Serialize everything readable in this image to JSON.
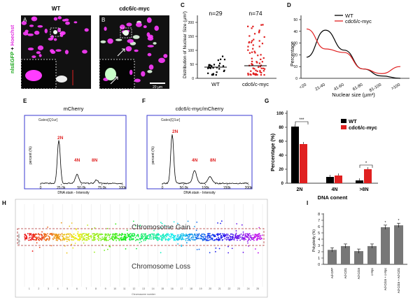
{
  "colors": {
    "wt": "#000000",
    "mut": "#e02020",
    "gfp": "#3cff3c",
    "hoechst": "#ff3cff",
    "gate": "#3a3ad0",
    "bar": "#777777"
  },
  "panels": {
    "A": {
      "letter": "A",
      "title": "WT"
    },
    "B": {
      "letter": "B",
      "title": "cdc6/c-myc",
      "scale": "20 µm"
    },
    "side_label": {
      "green": "nlsEGFP",
      "plus": "+",
      "magenta": "Hoechst"
    },
    "C": {
      "letter": "C",
      "n_wt": "n=29",
      "n_mut": "n=74",
      "ylabel": "Distribution of Nuclear Size (µm²)",
      "cats": [
        "WT",
        "cdc6/c-myc"
      ]
    },
    "D": {
      "letter": "D",
      "ylabel": "Percentage",
      "xlabel": "Nuclear size (µm²)",
      "legend": [
        "WT",
        "cdc6/c-myc"
      ]
    },
    "E": {
      "letter": "E",
      "title": "mCherry",
      "gate": "Gates[Q1ur]",
      "peaks": [
        "2N",
        "4N",
        "8N"
      ],
      "xlabel": "DNA stain - Intensity",
      "ylabel": "percent (%)"
    },
    "F": {
      "letter": "F",
      "title": "cdc6/c-myc/mCherry",
      "gate": "Gates[Q1ur]",
      "peaks": [
        "2N",
        "4N",
        "8N"
      ],
      "xlabel": "DNA stain - Intensity",
      "ylabel": "percent (%)"
    },
    "G": {
      "letter": "G",
      "ylabel": "Percentage (%)",
      "xlabel": "DNA conent",
      "legend": [
        "WT",
        "cdc6/c-myc"
      ]
    },
    "H": {
      "letter": "H",
      "gain": "Chromosome Gain",
      "loss": "Chromosome Loss",
      "xlabel": "Chromosome number",
      "ylabel": "Log2 ratio"
    },
    "I": {
      "letter": "I",
      "ylabel": "Polyploidy (%)"
    }
  },
  "chart_data": [
    {
      "panel": "C",
      "type": "scatter",
      "categories": [
        "WT",
        "cdc6/c-myc"
      ],
      "ylim": [
        0,
        200
      ],
      "yticks": [
        "0",
        "50",
        "100",
        "150",
        "200"
      ],
      "series": [
        {
          "name": "WT",
          "n": 29,
          "median": 40
        },
        {
          "name": "cdc6/c-myc",
          "n": 74,
          "median": 45
        }
      ]
    },
    {
      "panel": "D",
      "type": "line",
      "categories": [
        "<20",
        "21-40",
        "41-60",
        "61-80",
        "81-100",
        ">100"
      ],
      "ylim": [
        0,
        50
      ],
      "yticks": [
        "0",
        "10",
        "20",
        "30",
        "40",
        "50"
      ],
      "series": [
        {
          "name": "WT",
          "values": [
            18,
            41,
            24,
            8,
            2,
            0
          ]
        },
        {
          "name": "cdc6/c-myc",
          "values": [
            42,
            25,
            22,
            8,
            4,
            10
          ]
        }
      ]
    },
    {
      "panel": "G",
      "type": "bar",
      "categories": [
        "2N",
        "4N",
        ">8N"
      ],
      "ylim": [
        0,
        100
      ],
      "yticks": [
        "0",
        "20",
        "40",
        "60",
        "80",
        "100"
      ],
      "series": [
        {
          "name": "WT",
          "values": [
            81,
            9,
            4
          ]
        },
        {
          "name": "cdc6/c-myc",
          "values": [
            56,
            11,
            20
          ]
        }
      ],
      "annotations": [
        "***",
        "*"
      ]
    },
    {
      "panel": "I",
      "type": "bar",
      "categories": [
        "Ad-GFP",
        "Ad-Cdt1",
        "Ad-Cdc6",
        "c-Myc",
        "Ad-Cdc6 + c-Myc",
        "Ad-Cdc6 + Ad-Cdt1"
      ],
      "ylim": [
        0,
        8
      ],
      "yticks": [
        "0",
        "1",
        "2",
        "3",
        "4",
        "5",
        "6",
        "7",
        "8"
      ],
      "values": [
        2.3,
        2.9,
        2.1,
        2.9,
        5.9,
        6.2
      ]
    },
    {
      "panel": "E",
      "type": "area",
      "xticks": [
        "0",
        "25.0k",
        "50.0k",
        "75.0k",
        "100k"
      ],
      "peak_labels": [
        "2N",
        "4N",
        "8N"
      ]
    },
    {
      "panel": "F",
      "type": "area",
      "xticks": [
        "0",
        "50.0k",
        "100k",
        "150k",
        "200k"
      ],
      "peak_labels": [
        "2N",
        "4N",
        "8N"
      ]
    },
    {
      "panel": "H",
      "type": "scatter",
      "xticks": [
        "1",
        "2",
        "3",
        "4",
        "5",
        "6",
        "7",
        "8",
        "9",
        "10",
        "11",
        "12",
        "13",
        "14",
        "15",
        "16",
        "17",
        "18",
        "19",
        "20",
        "21",
        "22",
        "23",
        "24",
        "25"
      ]
    }
  ]
}
